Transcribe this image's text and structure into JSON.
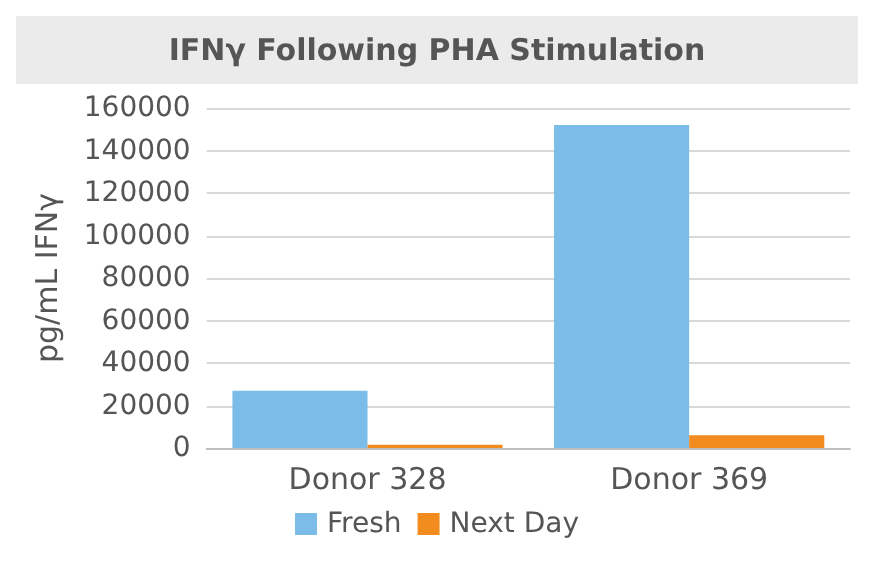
{
  "chart_data": {
    "type": "bar",
    "title": "IFNγ Following PHA Stimulation",
    "ylabel": "pg/mL IFNγ",
    "categories": [
      "Donor 328",
      "Donor 369"
    ],
    "series": [
      {
        "name": "Fresh",
        "color": "#7bbde8",
        "values": [
          27000,
          152000
        ]
      },
      {
        "name": "Next Day",
        "color": "#f28c1e",
        "values": [
          1500,
          6000
        ]
      }
    ],
    "ylim": [
      0,
      160000
    ],
    "yticks": [
      0,
      20000,
      40000,
      60000,
      80000,
      100000,
      120000,
      140000,
      160000
    ],
    "grid": "y",
    "legend": "bottom"
  }
}
